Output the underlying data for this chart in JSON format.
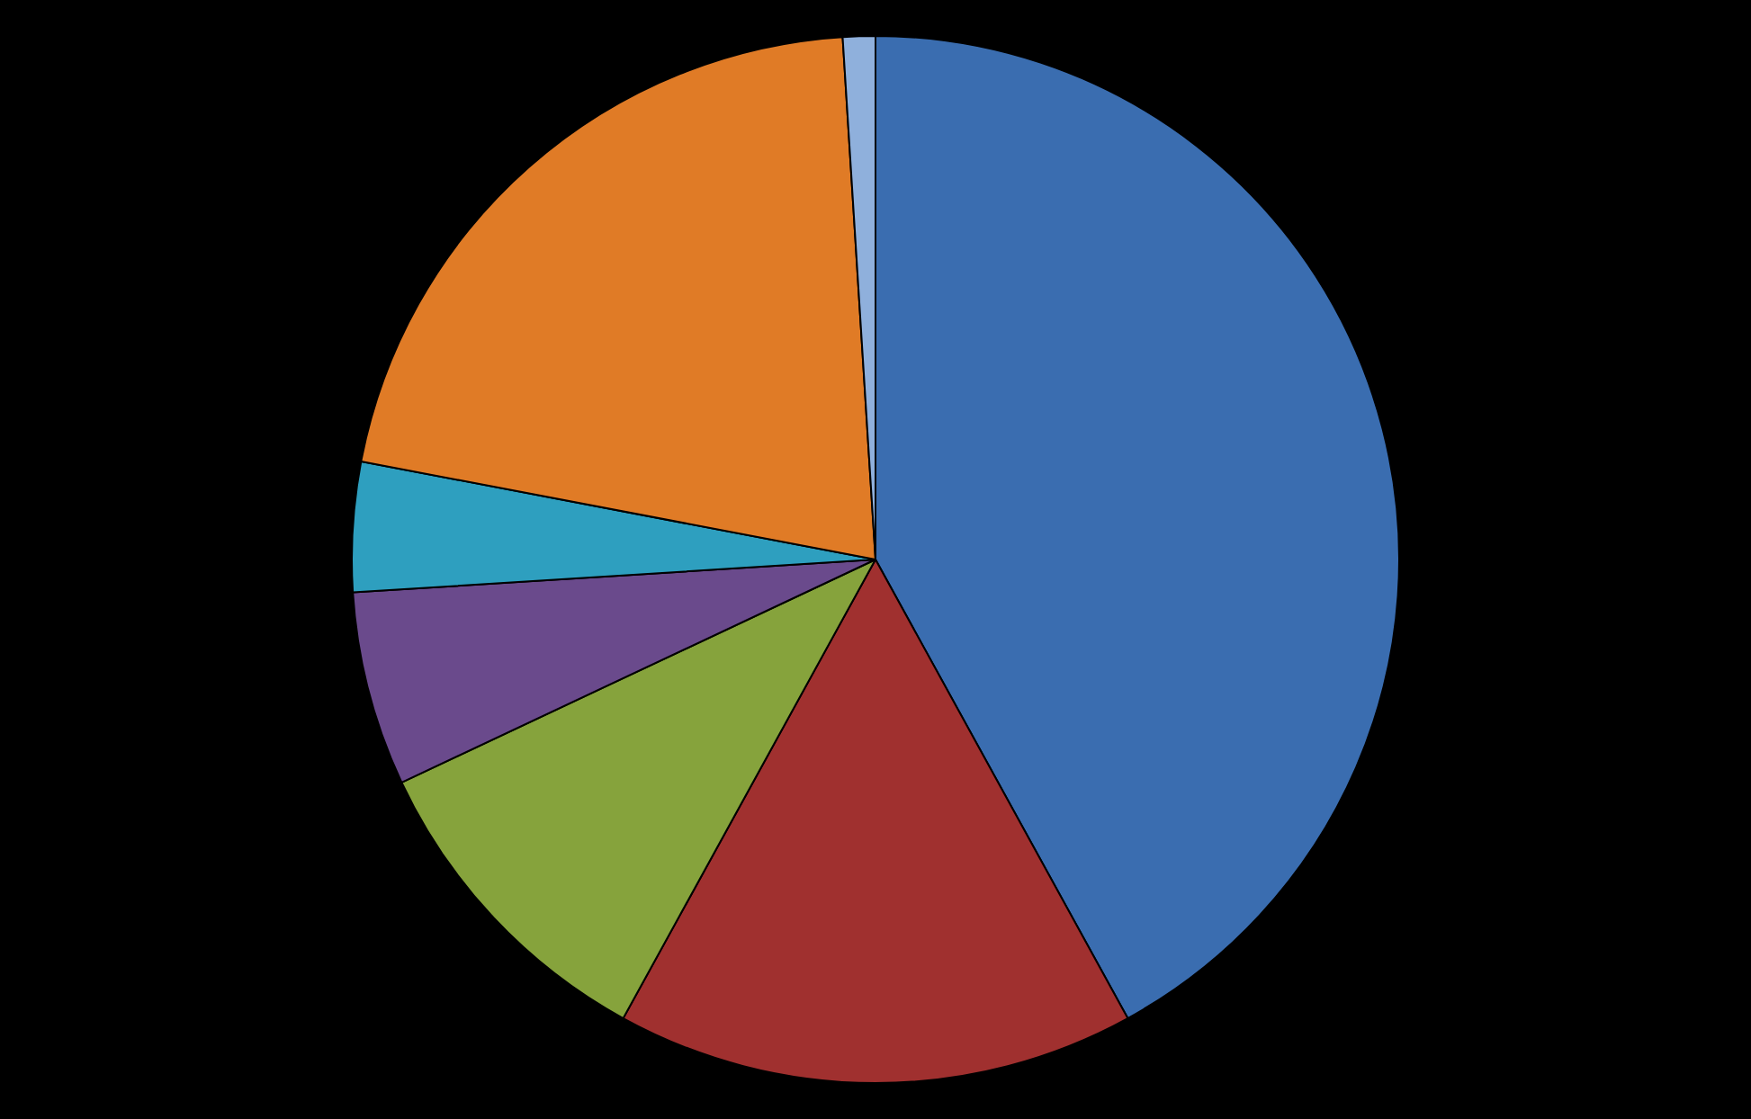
{
  "chart_data": {
    "type": "pie",
    "categories": [
      null,
      null,
      null,
      null,
      null,
      null,
      null
    ],
    "values": [
      42,
      16,
      10,
      6,
      4,
      21,
      1
    ],
    "colors": [
      "#3a6db0",
      "#a0302f",
      "#86a33c",
      "#6a4a8c",
      "#2e9fbf",
      "#e07b26",
      "#8fb0dc"
    ],
    "legend": false
  }
}
